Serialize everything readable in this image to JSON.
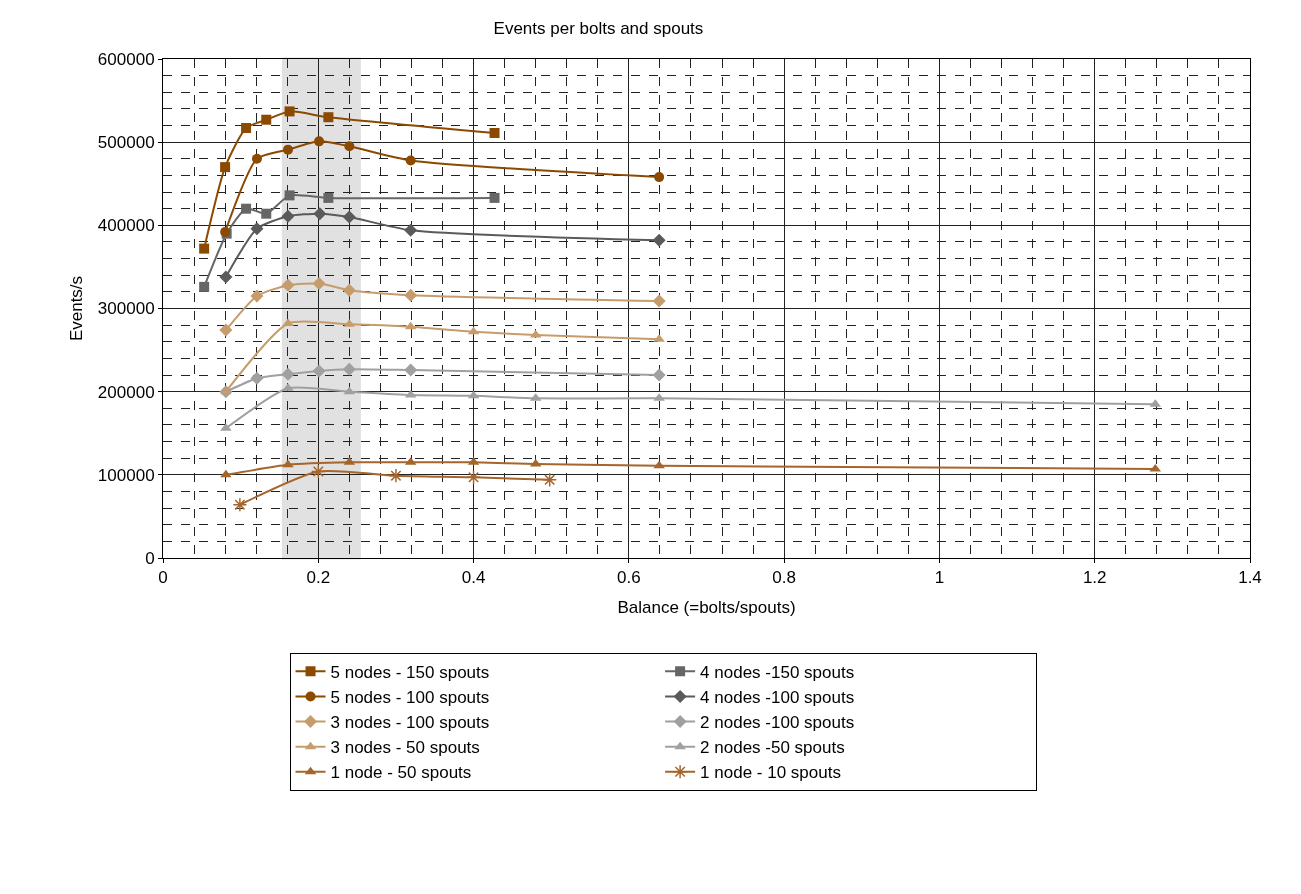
{
  "chart_data": {
    "type": "line",
    "title": "Events per bolts and spouts",
    "xlabel": "Balance (=bolts/spouts)",
    "ylabel": "Events/s",
    "xlim": [
      0,
      1.4
    ],
    "xticks": [
      0,
      0.2,
      0.4,
      0.6,
      0.8,
      1,
      1.2,
      1.4
    ],
    "ylim": [
      0,
      600000
    ],
    "yticks": [
      0,
      100000,
      200000,
      300000,
      400000,
      500000,
      600000
    ],
    "grid": true,
    "legend": "bottom",
    "line_style": "solid",
    "bands": [
      {
        "axis": "x",
        "from": 0.155,
        "to": 0.253,
        "color": "#8c8c8c"
      }
    ],
    "series": [
      {
        "name": "5 nodes - 150 spouts",
        "color": "#8b4a00",
        "marker": "square",
        "x": [
          0.053,
          0.08,
          0.107,
          0.133,
          0.163,
          0.213,
          0.427
        ],
        "values": [
          372000,
          470000,
          517000,
          527000,
          537000,
          530000,
          511000
        ]
      },
      {
        "name": "4 nodes -150 spouts",
        "color": "#666666",
        "marker": "square",
        "x": [
          0.053,
          0.082,
          0.107,
          0.133,
          0.163,
          0.213,
          0.427
        ],
        "values": [
          326000,
          390000,
          420000,
          414000,
          436000,
          433000,
          433000
        ]
      },
      {
        "name": "5 nodes - 100 spouts",
        "color": "#8b4a00",
        "marker": "circle",
        "x": [
          0.08,
          0.121,
          0.161,
          0.201,
          0.24,
          0.319,
          0.639
        ],
        "values": [
          392000,
          480000,
          491000,
          501000,
          495000,
          478000,
          458000
        ]
      },
      {
        "name": "4 nodes -100 spouts",
        "color": "#5a5a5a",
        "marker": "diamond",
        "x": [
          0.081,
          0.121,
          0.161,
          0.202,
          0.24,
          0.319,
          0.639
        ],
        "values": [
          338000,
          396000,
          411000,
          414000,
          410000,
          394000,
          382000
        ]
      },
      {
        "name": "3 nodes - 100 spouts",
        "color": "#c69c6d",
        "marker": "diamond",
        "x": [
          0.081,
          0.121,
          0.161,
          0.201,
          0.24,
          0.319,
          0.639
        ],
        "values": [
          274000,
          315000,
          328000,
          330000,
          322000,
          316000,
          309000
        ]
      },
      {
        "name": "2 nodes -100 spouts",
        "color": "#a0a0a0",
        "marker": "diamond",
        "x": [
          0.081,
          0.121,
          0.161,
          0.201,
          0.24,
          0.319,
          0.639
        ],
        "values": [
          200000,
          216000,
          221000,
          225000,
          227000,
          226000,
          220000
        ]
      },
      {
        "name": "3 nodes - 50 spouts",
        "color": "#c69c6d",
        "marker": "triangle",
        "x": [
          0.081,
          0.161,
          0.24,
          0.319,
          0.4,
          0.48,
          0.639
        ],
        "values": [
          200000,
          282000,
          281000,
          278000,
          272000,
          268000,
          263000
        ]
      },
      {
        "name": "2 nodes -50 spouts",
        "color": "#a0a0a0",
        "marker": "triangle",
        "x": [
          0.081,
          0.161,
          0.24,
          0.319,
          0.4,
          0.48,
          0.639,
          1.278
        ],
        "values": [
          156000,
          204000,
          200000,
          196000,
          195000,
          192000,
          192000,
          185000
        ]
      },
      {
        "name": "1 node - 50 spouts",
        "color": "#a5652b",
        "marker": "triangle",
        "x": [
          0.081,
          0.161,
          0.24,
          0.319,
          0.4,
          0.48,
          0.639,
          1.278
        ],
        "values": [
          100000,
          112000,
          115000,
          115000,
          115000,
          113000,
          111000,
          107000
        ]
      },
      {
        "name": "1 node - 10 spouts",
        "color": "#a5652b",
        "marker": "cross",
        "x": [
          0.099,
          0.2,
          0.3,
          0.4,
          0.498
        ],
        "values": [
          64000,
          104000,
          99000,
          97000,
          94000
        ]
      }
    ]
  }
}
